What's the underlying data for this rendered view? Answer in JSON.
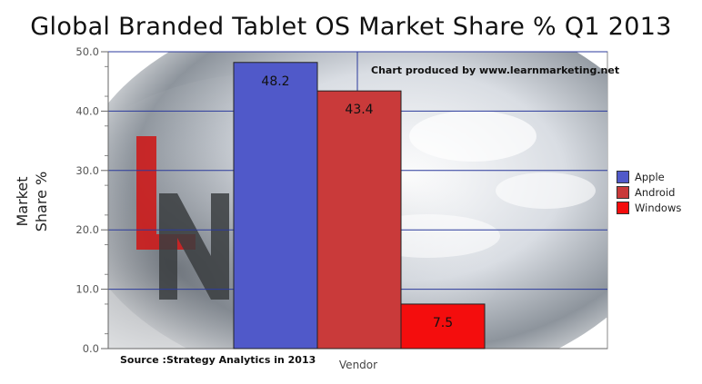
{
  "chart_data": {
    "type": "bar",
    "title": "Global Branded Tablet OS Market Share % Q1 2013",
    "xlabel": "Vendor",
    "ylabel": "Market Share %",
    "ylim": [
      0,
      50
    ],
    "yticks": [
      "0.0",
      "10.0",
      "20.0",
      "30.0",
      "40.0",
      "50.0"
    ],
    "categories": [
      "Apple",
      "Android",
      "Windows"
    ],
    "values": [
      48.2,
      43.4,
      7.5
    ],
    "value_labels": [
      "48.2",
      "43.4",
      "7.5"
    ],
    "colors": [
      "#5059c9",
      "#c93a3a",
      "#f40d0d"
    ],
    "grid": true,
    "legend_position": "right",
    "annotations": {
      "credit": "Chart produced by www.learnmarketing.net",
      "source": "Source :Strategy Analytics in 2013"
    }
  }
}
